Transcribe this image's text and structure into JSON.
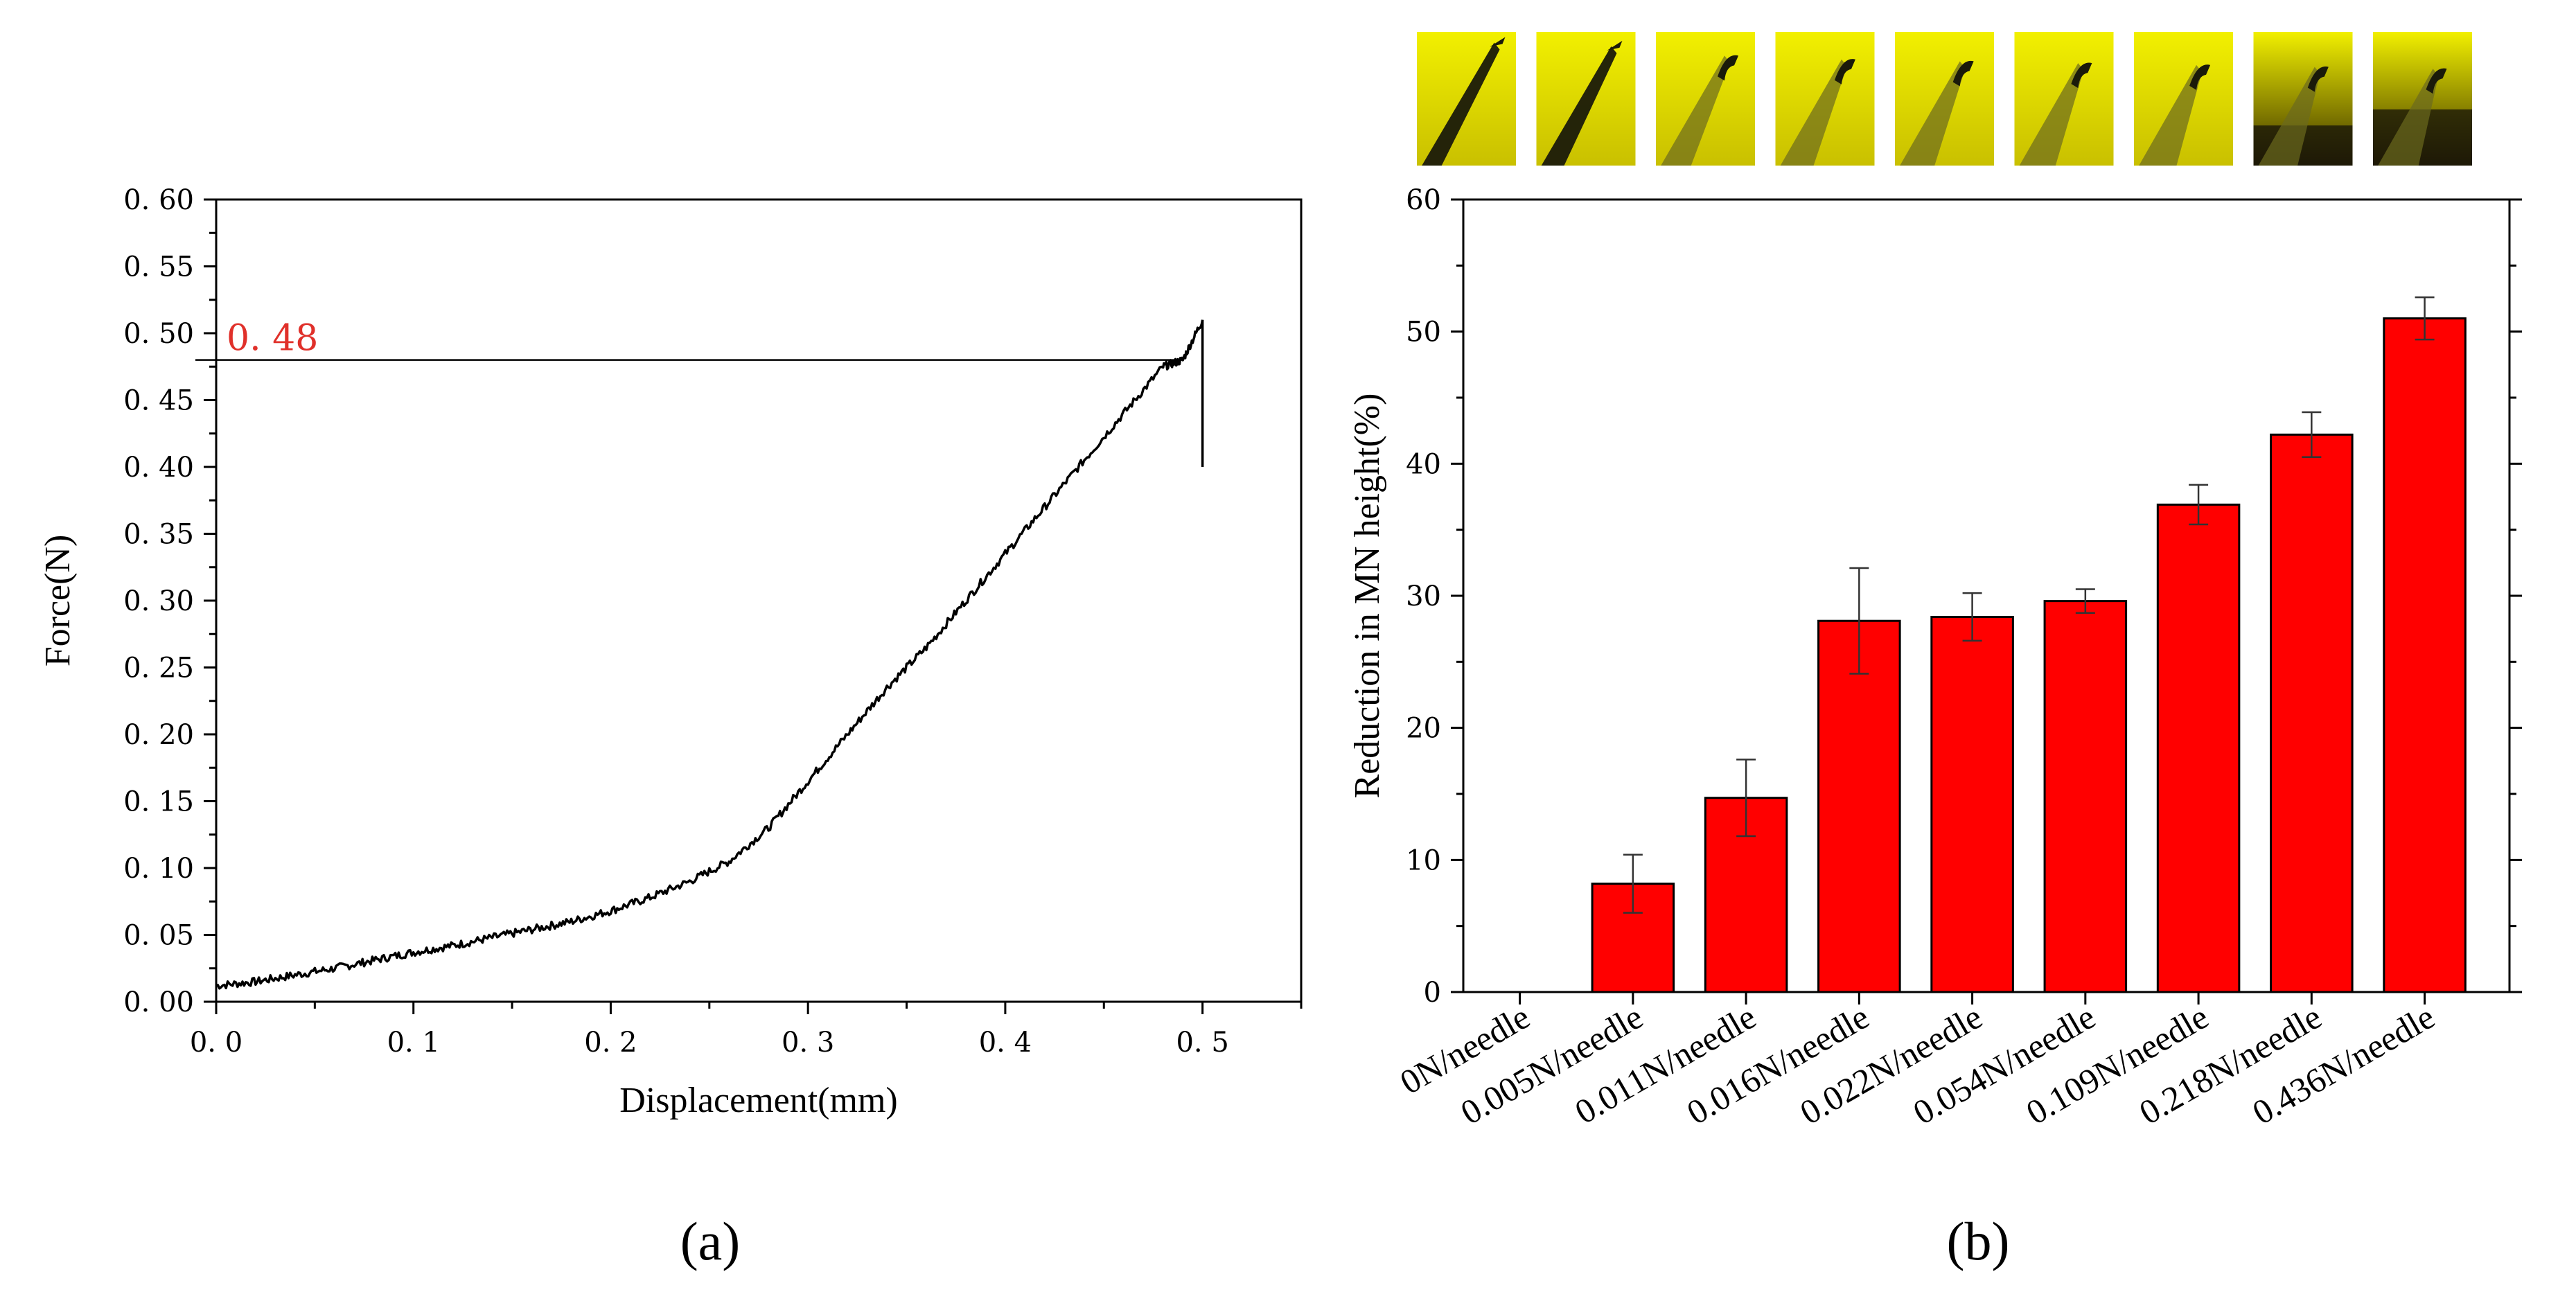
{
  "colors": {
    "bar": "#ff0000",
    "bar_edge": "#000000",
    "annotation": "#e0302a",
    "thumb_bg": "#f2f000",
    "thumb_dark": "#1a1a0a"
  },
  "chart_data": [
    {
      "panel": "a",
      "type": "line",
      "panel_label": "(a)",
      "xlabel": "Displacement(mm)",
      "ylabel": "Force(N)",
      "xlim": [
        0.0,
        0.55
      ],
      "ylim": [
        0.0,
        0.6
      ],
      "xticks": [
        0.0,
        0.1,
        0.2,
        0.3,
        0.4,
        0.5
      ],
      "xtick_labels": [
        "0. 0",
        "0. 1",
        "0. 2",
        "0. 3",
        "0. 4",
        "0. 5"
      ],
      "yticks": [
        0.0,
        0.05,
        0.1,
        0.15,
        0.2,
        0.25,
        0.3,
        0.35,
        0.4,
        0.45,
        0.5,
        0.55,
        0.6
      ],
      "ytick_labels": [
        "0. 00",
        "0. 05",
        "0. 10",
        "0. 15",
        "0. 20",
        "0. 25",
        "0. 30",
        "0. 35",
        "0. 40",
        "0. 45",
        "0. 50",
        "0. 55",
        "0. 60"
      ],
      "annotation": {
        "text": "0. 48",
        "y": 0.48
      },
      "series": [
        {
          "name": "force",
          "x": [
            0.0,
            0.02,
            0.04,
            0.06,
            0.08,
            0.1,
            0.12,
            0.14,
            0.16,
            0.18,
            0.2,
            0.22,
            0.24,
            0.26,
            0.28,
            0.3,
            0.32,
            0.34,
            0.36,
            0.38,
            0.4,
            0.42,
            0.44,
            0.46,
            0.48,
            0.49,
            0.5,
            0.5
          ],
          "y": [
            0.012,
            0.015,
            0.02,
            0.025,
            0.031,
            0.037,
            0.042,
            0.048,
            0.054,
            0.06,
            0.068,
            0.078,
            0.09,
            0.105,
            0.13,
            0.165,
            0.2,
            0.235,
            0.265,
            0.3,
            0.335,
            0.37,
            0.405,
            0.44,
            0.475,
            0.48,
            0.51,
            0.4
          ]
        }
      ]
    },
    {
      "panel": "b",
      "type": "bar",
      "panel_label": "(b)",
      "xlabel": "",
      "ylabel": "Reduction in MN height(%)",
      "ylim": [
        0,
        60
      ],
      "yticks": [
        0,
        10,
        20,
        30,
        40,
        50,
        60
      ],
      "categories": [
        "0N/needle",
        "0.005N/needle",
        "0.011N/needle",
        "0.016N/needle",
        "0.022N/needle",
        "0.054N/needle",
        "0.109N/needle",
        "0.218N/needle",
        "0.436N/needle"
      ],
      "values": [
        0,
        8.2,
        14.7,
        28.1,
        28.4,
        29.6,
        36.9,
        42.2,
        51.0
      ],
      "errors": [
        0,
        2.2,
        2.9,
        4.0,
        1.8,
        0.9,
        1.5,
        1.7,
        1.6
      ]
    }
  ],
  "thumbnails": [
    {
      "icon": "microneedle-tip-photo",
      "bent": 0.0,
      "dark": 0.2
    },
    {
      "icon": "microneedle-tip-photo",
      "bent": 0.1,
      "dark": 0.2
    },
    {
      "icon": "microneedle-tip-photo",
      "bent": 0.35,
      "dark": 0.1
    },
    {
      "icon": "microneedle-tip-photo",
      "bent": 0.45,
      "dark": 0.1
    },
    {
      "icon": "microneedle-tip-photo",
      "bent": 0.5,
      "dark": 0.1
    },
    {
      "icon": "microneedle-tip-photo",
      "bent": 0.55,
      "dark": 0.1
    },
    {
      "icon": "microneedle-tip-photo",
      "bent": 0.6,
      "dark": 0.15
    },
    {
      "icon": "microneedle-tip-photo",
      "bent": 0.65,
      "dark": 0.5
    },
    {
      "icon": "microneedle-tip-photo",
      "bent": 0.7,
      "dark": 0.7
    }
  ]
}
